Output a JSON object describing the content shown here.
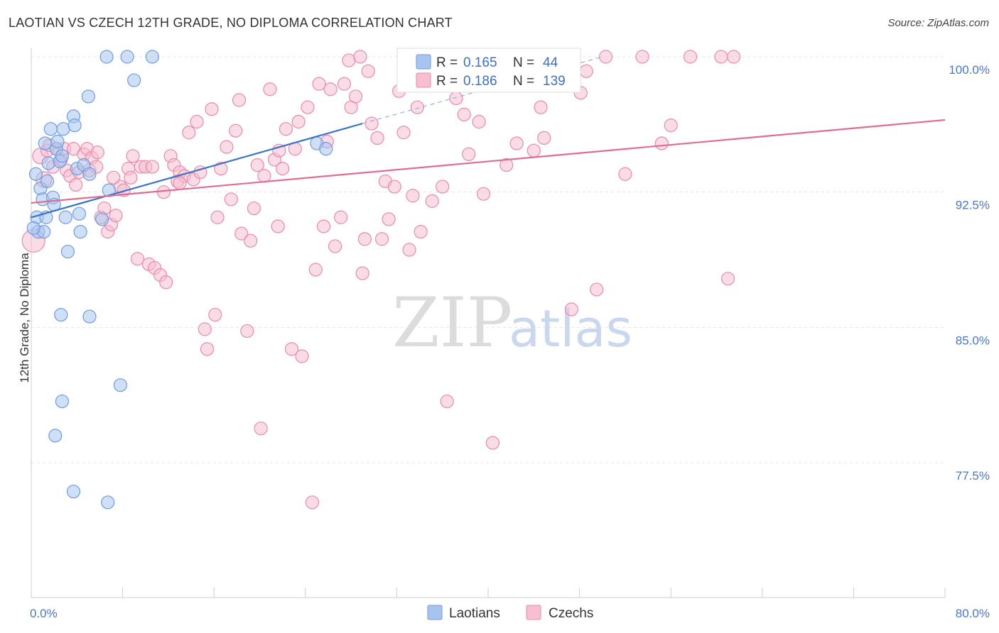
{
  "title": "LAOTIAN VS CZECH 12TH GRADE, NO DIPLOMA CORRELATION CHART",
  "source": "Source: ZipAtlas.com",
  "watermark": {
    "part1": "ZIP",
    "part2": "atlas"
  },
  "legend_box": {
    "rows": [
      {
        "r_label": "R = ",
        "r_value": "0.165",
        "n_label": "N = ",
        "n_value": "44",
        "color": "#a8c4ee",
        "stroke": "#6f9be0"
      },
      {
        "r_label": "R = ",
        "r_value": "0.186",
        "n_label": "N = ",
        "n_value": "139",
        "color": "#f6c0d2",
        "stroke": "#e88aa8"
      }
    ]
  },
  "chart_data": {
    "type": "scatter",
    "title": "LAOTIAN VS CZECH 12TH GRADE, NO DIPLOMA CORRELATION CHART",
    "xlabel": "",
    "ylabel": "12th Grade, No Diploma",
    "xlim": [
      0,
      80
    ],
    "ylim": [
      71.0,
      101.0
    ],
    "x_tick_labels": [
      "0.0%",
      "80.0%"
    ],
    "y_ticks": [
      100.0,
      92.5,
      85.0,
      77.5
    ],
    "y_tick_labels": [
      "100.0%",
      "92.5%",
      "85.0%",
      "77.5%"
    ],
    "grid": true,
    "legend_position": "bottom",
    "series": [
      {
        "name": "Laotians",
        "color": "#a8c4ee",
        "stroke": "#6f9be0",
        "trend": {
          "x0": 0.0,
          "y0": 91.1,
          "x1": 29.0,
          "y1": 96.3,
          "dashed_to_x": 50.0,
          "dashed_to_y": 100.0,
          "color": "#3a74c8"
        },
        "points": [
          [
            0.4,
            93.5
          ],
          [
            0.5,
            91.1
          ],
          [
            0.6,
            90.3
          ],
          [
            0.8,
            92.7
          ],
          [
            1.0,
            92.1
          ],
          [
            1.1,
            90.3
          ],
          [
            1.2,
            95.2
          ],
          [
            1.3,
            91.1
          ],
          [
            1.4,
            93.1
          ],
          [
            1.5,
            94.1
          ],
          [
            1.7,
            96.0
          ],
          [
            1.9,
            92.2
          ],
          [
            2.0,
            91.8
          ],
          [
            2.2,
            94.9
          ],
          [
            2.3,
            95.3
          ],
          [
            2.5,
            94.2
          ],
          [
            2.7,
            94.5
          ],
          [
            2.8,
            96.0
          ],
          [
            3.0,
            91.1
          ],
          [
            3.2,
            89.2
          ],
          [
            3.7,
            96.7
          ],
          [
            3.8,
            96.2
          ],
          [
            4.0,
            93.8
          ],
          [
            4.2,
            91.3
          ],
          [
            4.3,
            90.3
          ],
          [
            4.6,
            94.0
          ],
          [
            5.0,
            97.8
          ],
          [
            5.1,
            93.5
          ],
          [
            6.2,
            91.0
          ],
          [
            6.6,
            100.0
          ],
          [
            6.8,
            92.6
          ],
          [
            8.4,
            100.0
          ],
          [
            9.0,
            98.7
          ],
          [
            10.6,
            100.0
          ],
          [
            2.6,
            85.7
          ],
          [
            5.1,
            85.6
          ],
          [
            7.8,
            81.8
          ],
          [
            2.7,
            80.9
          ],
          [
            2.1,
            79.0
          ],
          [
            3.7,
            75.9
          ],
          [
            6.7,
            75.3
          ],
          [
            25.0,
            95.2
          ],
          [
            25.8,
            94.9
          ],
          [
            0.2,
            90.5
          ]
        ]
      },
      {
        "name": "Czechs",
        "color": "#f6c0d2",
        "stroke": "#e88aa8",
        "trend": {
          "x0": 0.0,
          "y0": 91.9,
          "x1": 80.0,
          "y1": 96.5,
          "color": "#e06b95"
        },
        "points": [
          [
            0.2,
            89.8
          ],
          [
            0.8,
            94.5
          ],
          [
            1.1,
            93.2
          ],
          [
            1.4,
            94.8
          ],
          [
            1.6,
            95.1
          ],
          [
            1.9,
            93.9
          ],
          [
            2.2,
            94.9
          ],
          [
            2.6,
            94.3
          ],
          [
            2.9,
            94.9
          ],
          [
            3.1,
            93.7
          ],
          [
            3.4,
            93.4
          ],
          [
            3.7,
            94.9
          ],
          [
            3.9,
            92.9
          ],
          [
            4.2,
            93.6
          ],
          [
            4.6,
            94.6
          ],
          [
            4.9,
            94.9
          ],
          [
            5.1,
            93.7
          ],
          [
            5.3,
            94.4
          ],
          [
            5.7,
            93.9
          ],
          [
            6.1,
            91.1
          ],
          [
            6.4,
            91.6
          ],
          [
            6.7,
            90.3
          ],
          [
            7.0,
            90.7
          ],
          [
            7.4,
            91.2
          ],
          [
            7.8,
            92.8
          ],
          [
            8.1,
            92.6
          ],
          [
            8.5,
            93.8
          ],
          [
            8.7,
            93.3
          ],
          [
            8.9,
            94.5
          ],
          [
            9.3,
            88.8
          ],
          [
            9.6,
            93.9
          ],
          [
            10.0,
            93.9
          ],
          [
            10.3,
            88.5
          ],
          [
            10.6,
            93.9
          ],
          [
            10.8,
            88.3
          ],
          [
            11.3,
            87.9
          ],
          [
            11.6,
            92.5
          ],
          [
            11.8,
            87.5
          ],
          [
            12.2,
            94.5
          ],
          [
            12.5,
            94.0
          ],
          [
            12.8,
            93.1
          ],
          [
            13.0,
            93.6
          ],
          [
            13.4,
            93.4
          ],
          [
            13.8,
            95.8
          ],
          [
            14.2,
            93.2
          ],
          [
            14.5,
            96.4
          ],
          [
            14.8,
            93.6
          ],
          [
            15.2,
            84.9
          ],
          [
            15.4,
            83.8
          ],
          [
            15.8,
            97.1
          ],
          [
            16.1,
            85.7
          ],
          [
            16.3,
            91.1
          ],
          [
            16.6,
            93.8
          ],
          [
            17.1,
            95.0
          ],
          [
            17.5,
            92.1
          ],
          [
            17.9,
            95.9
          ],
          [
            18.2,
            97.6
          ],
          [
            18.4,
            90.2
          ],
          [
            18.9,
            84.8
          ],
          [
            19.2,
            89.8
          ],
          [
            19.5,
            91.6
          ],
          [
            19.8,
            94.0
          ],
          [
            20.1,
            79.4
          ],
          [
            20.4,
            93.4
          ],
          [
            20.9,
            98.2
          ],
          [
            21.3,
            94.3
          ],
          [
            21.6,
            90.6
          ],
          [
            22.0,
            93.8
          ],
          [
            22.3,
            96.0
          ],
          [
            22.8,
            83.8
          ],
          [
            23.1,
            94.9
          ],
          [
            23.4,
            96.4
          ],
          [
            23.7,
            83.4
          ],
          [
            24.2,
            97.2
          ],
          [
            24.6,
            75.3
          ],
          [
            24.9,
            88.2
          ],
          [
            25.2,
            98.5
          ],
          [
            25.6,
            90.6
          ],
          [
            25.9,
            95.3
          ],
          [
            26.2,
            98.2
          ],
          [
            26.6,
            89.5
          ],
          [
            27.1,
            91.1
          ],
          [
            27.4,
            98.5
          ],
          [
            27.8,
            99.8
          ],
          [
            28.0,
            97.2
          ],
          [
            28.4,
            97.8
          ],
          [
            28.8,
            100.0
          ],
          [
            29.0,
            88.0
          ],
          [
            29.2,
            89.9
          ],
          [
            29.5,
            99.2
          ],
          [
            29.8,
            96.3
          ],
          [
            30.3,
            95.5
          ],
          [
            30.7,
            89.9
          ],
          [
            31.0,
            93.1
          ],
          [
            31.3,
            91.0
          ],
          [
            31.8,
            92.8
          ],
          [
            32.2,
            98.1
          ],
          [
            32.6,
            95.8
          ],
          [
            33.1,
            89.3
          ],
          [
            33.4,
            92.3
          ],
          [
            33.8,
            97.2
          ],
          [
            34.1,
            90.3
          ],
          [
            35.1,
            92.0
          ],
          [
            36.0,
            92.8
          ],
          [
            36.4,
            80.9
          ],
          [
            37.2,
            97.7
          ],
          [
            37.9,
            96.8
          ],
          [
            38.3,
            94.6
          ],
          [
            39.2,
            96.4
          ],
          [
            39.6,
            92.4
          ],
          [
            40.4,
            78.6
          ],
          [
            41.6,
            94.0
          ],
          [
            42.5,
            95.2
          ],
          [
            43.0,
            100.0
          ],
          [
            44.0,
            94.8
          ],
          [
            44.6,
            97.2
          ],
          [
            44.9,
            95.5
          ],
          [
            47.3,
            86.0
          ],
          [
            48.1,
            98.0
          ],
          [
            48.6,
            99.2
          ],
          [
            49.5,
            87.1
          ],
          [
            50.3,
            100.0
          ],
          [
            52.0,
            93.5
          ],
          [
            53.5,
            100.0
          ],
          [
            55.2,
            95.2
          ],
          [
            56.0,
            96.2
          ],
          [
            57.7,
            100.0
          ],
          [
            60.4,
            100.0
          ],
          [
            61.0,
            87.7
          ],
          [
            61.5,
            100.0
          ],
          [
            45.2,
            100.0
          ],
          [
            46.0,
            100.0
          ],
          [
            35.0,
            99.5
          ],
          [
            39.0,
            99.5
          ],
          [
            42.0,
            99.0
          ],
          [
            5.8,
            94.7
          ],
          [
            13.0,
            93.0
          ],
          [
            21.7,
            94.8
          ],
          [
            7.2,
            93.3
          ]
        ]
      }
    ]
  }
}
